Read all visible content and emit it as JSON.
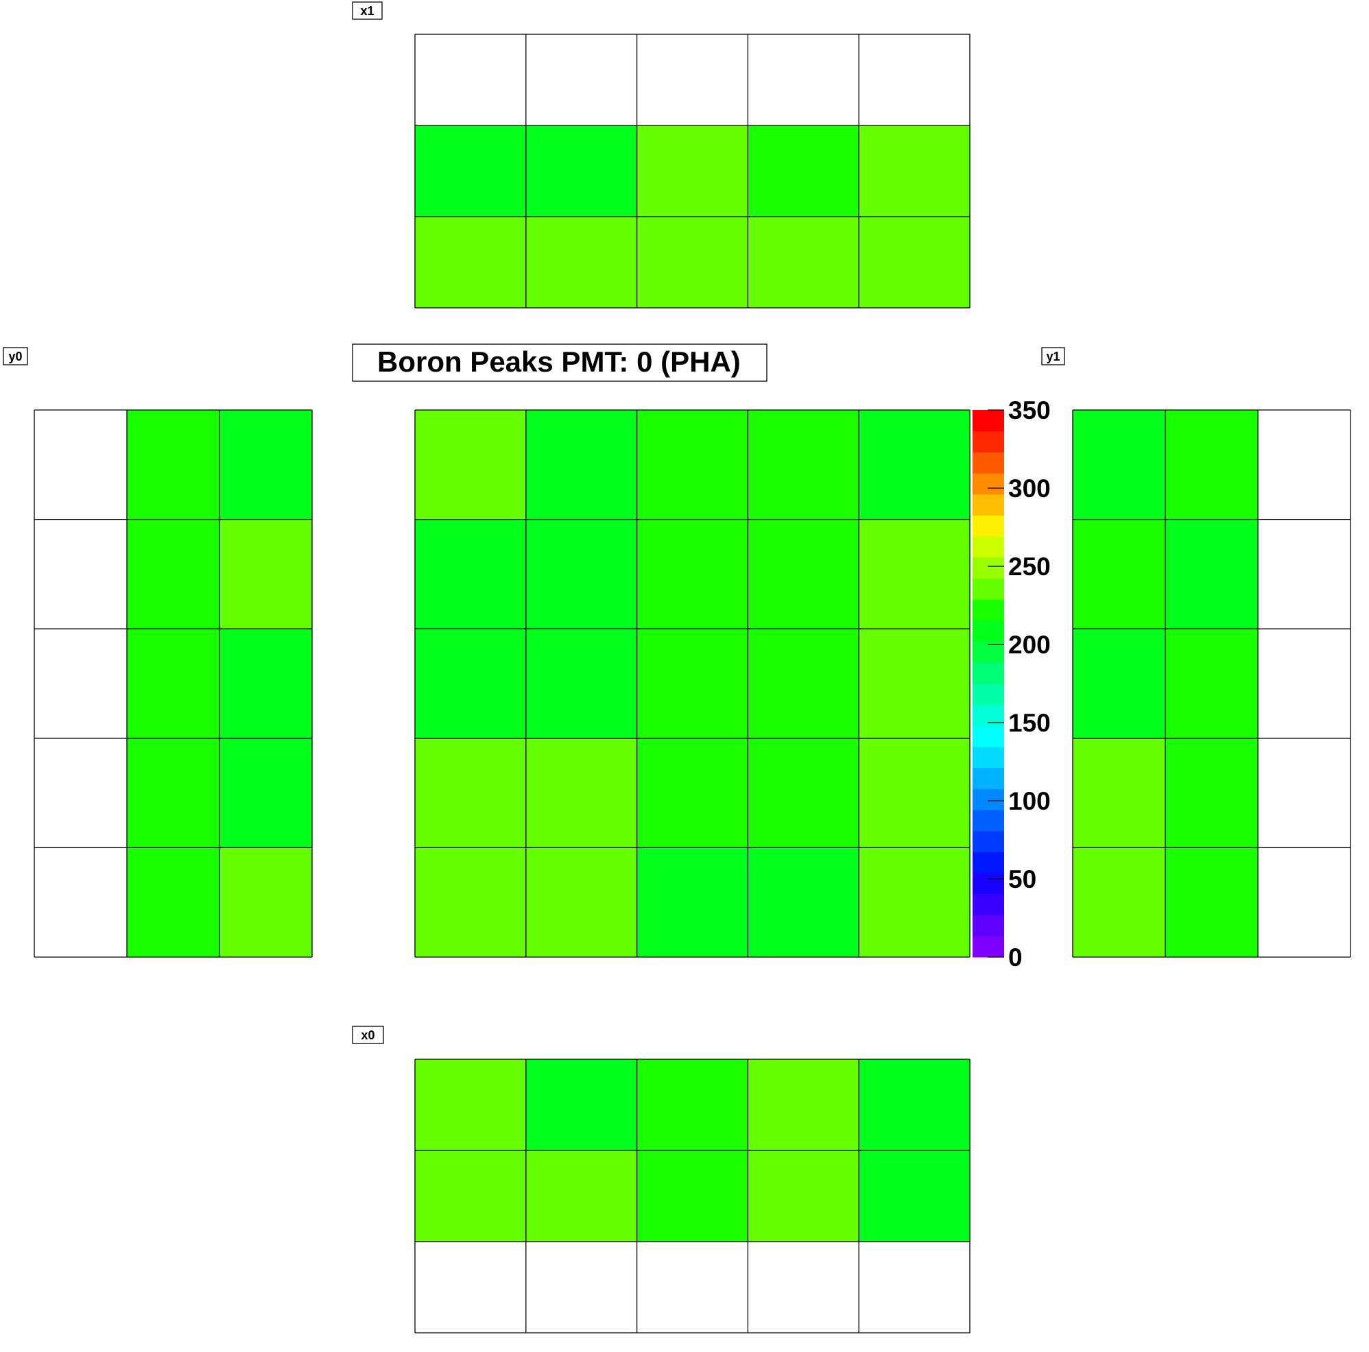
{
  "chart_data": {
    "type": "heatmap",
    "title": "Boron Peaks PMT: 0 (PHA)",
    "zlim": [
      0,
      350
    ],
    "colorbar_ticks": [
      "0",
      "50",
      "100",
      "150",
      "200",
      "250",
      "300",
      "350"
    ],
    "colorbar_colors": [
      "#7f00ff",
      "#5e00ff",
      "#3a00ff",
      "#1a00ff",
      "#0018ff",
      "#003cff",
      "#005fff",
      "#0088ff",
      "#00b2ff",
      "#00dbff",
      "#00ffff",
      "#00ffd7",
      "#00ffa8",
      "#00ff76",
      "#00ff40",
      "#00ff1a",
      "#1aff00",
      "#66ff00",
      "#99ff00",
      "#ccff00",
      "#ffef00",
      "#ffbd00",
      "#ff8c00",
      "#ff5900",
      "#ff2800",
      "#ff0000"
    ],
    "panels": [
      {
        "name": "x1",
        "rows": [
          [
            null,
            null,
            null,
            null,
            null
          ],
          [
            210,
            210,
            240,
            225,
            230
          ],
          [
            240,
            230,
            240,
            240,
            230
          ]
        ]
      },
      {
        "name": "y0",
        "rows": [
          [
            null,
            225,
            210
          ],
          [
            null,
            225,
            230
          ],
          [
            null,
            225,
            210
          ],
          [
            null,
            225,
            210
          ],
          [
            null,
            225,
            240
          ]
        ]
      },
      {
        "name": "center",
        "rows": [
          [
            240,
            210,
            225,
            225,
            210
          ],
          [
            210,
            210,
            225,
            225,
            230
          ],
          [
            210,
            210,
            225,
            225,
            230
          ],
          [
            230,
            230,
            225,
            225,
            230
          ],
          [
            230,
            230,
            210,
            210,
            230
          ]
        ]
      },
      {
        "name": "y1",
        "rows": [
          [
            210,
            225,
            null
          ],
          [
            225,
            210,
            null
          ],
          [
            210,
            225,
            null
          ],
          [
            240,
            225,
            null
          ],
          [
            240,
            225,
            null
          ]
        ]
      },
      {
        "name": "x0",
        "rows": [
          [
            230,
            210,
            225,
            240,
            210
          ],
          [
            230,
            240,
            225,
            240,
            210
          ],
          [
            null,
            null,
            null,
            null,
            null
          ]
        ]
      }
    ]
  }
}
